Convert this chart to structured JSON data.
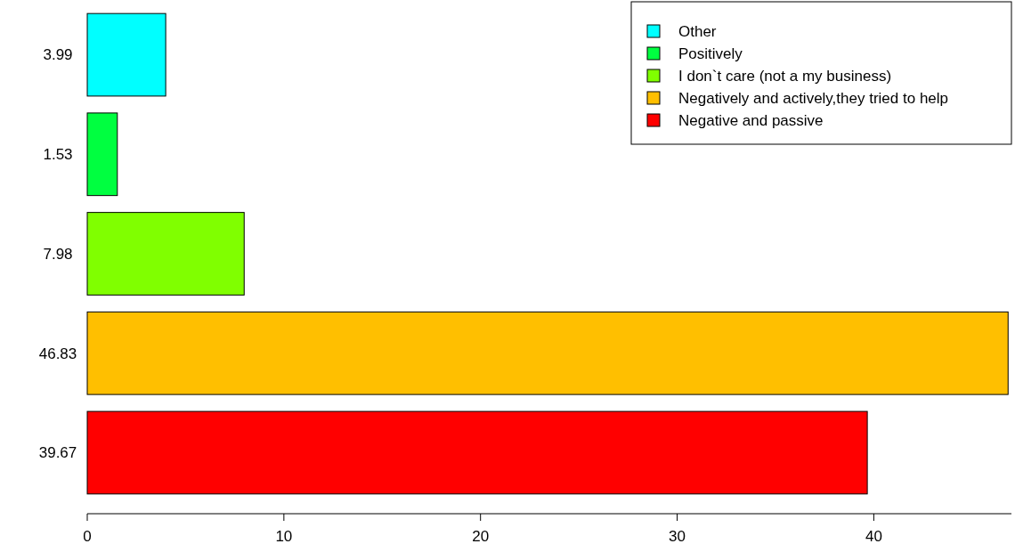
{
  "chart_data": {
    "type": "bar",
    "orientation": "horizontal",
    "categories": [
      "3.99",
      "1.53",
      "7.98",
      "46.83",
      "39.67"
    ],
    "series": [
      {
        "name": "Other",
        "color": "#00ffff",
        "values": [
          3.99,
          null,
          null,
          null,
          null
        ]
      },
      {
        "name": "Positively",
        "color": "#00ff40",
        "values": [
          null,
          1.53,
          null,
          null,
          null
        ]
      },
      {
        "name": "I don`t care (not a my business)",
        "color": "#80ff00",
        "values": [
          null,
          null,
          7.98,
          null,
          null
        ]
      },
      {
        "name": "Negatively and actively,they tried to help",
        "color": "#ffbf00",
        "values": [
          null,
          null,
          null,
          46.83,
          null
        ]
      },
      {
        "name": "Negative and passive",
        "color": "#ff0000",
        "values": [
          null,
          null,
          null,
          null,
          39.67
        ]
      }
    ],
    "xlim": [
      0,
      47
    ],
    "xticks": [
      0,
      10,
      20,
      30,
      40
    ],
    "legend": "top right",
    "grid": false
  }
}
